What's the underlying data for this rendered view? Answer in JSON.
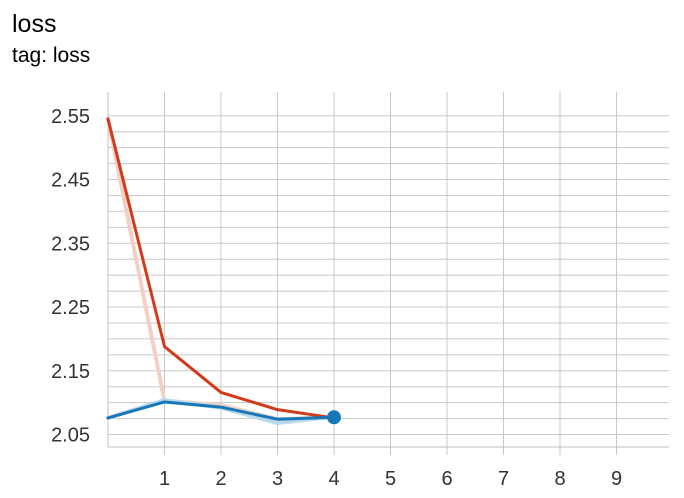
{
  "chart_data": {
    "type": "line",
    "title": "loss",
    "subtitle": "tag: loss",
    "xlabel": "",
    "ylabel": "",
    "xlim": [
      0,
      10
    ],
    "ylim": [
      2.02,
      2.57
    ],
    "x_ticks": [
      1,
      2,
      3,
      4,
      5,
      6,
      7,
      8,
      9
    ],
    "y_ticks": [
      2.05,
      2.15,
      2.25,
      2.35,
      2.45,
      2.55
    ],
    "y_tick_labels": [
      "2.05",
      "2.15",
      "2.25",
      "2.35",
      "2.45",
      "2.55"
    ],
    "grid": true,
    "series": [
      {
        "color": "#d13a1a",
        "raw_color": "#f3cfc4",
        "x": [
          0,
          1,
          2,
          3,
          4
        ],
        "values": [
          2.545,
          2.188,
          2.116,
          2.089,
          2.076
        ],
        "raw_values": [
          2.545,
          2.103,
          2.096,
          2.074,
          2.077
        ]
      },
      {
        "color": "#1777b8",
        "raw_color": "#b7d9ee",
        "x": [
          0,
          1,
          2,
          3,
          4
        ],
        "values": [
          2.076,
          2.101,
          2.093,
          2.074,
          2.077
        ],
        "raw_values": [
          2.076,
          2.104,
          2.092,
          2.068,
          2.078
        ],
        "highlight_last_point": true
      }
    ]
  }
}
